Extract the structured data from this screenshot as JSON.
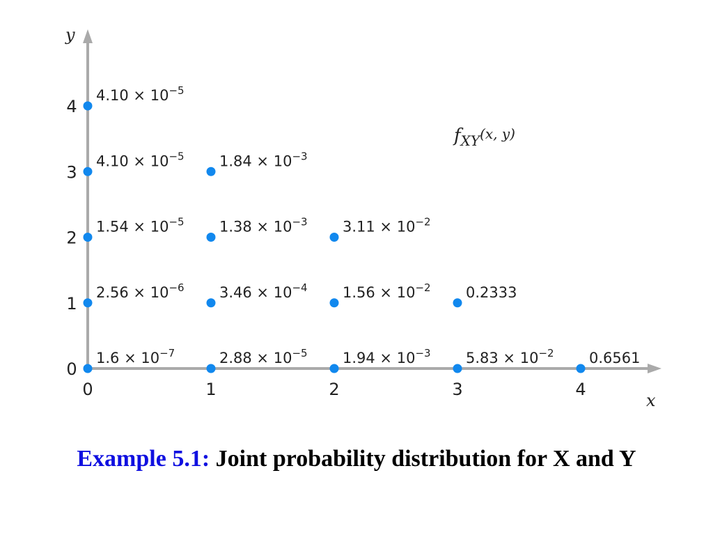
{
  "chart_data": {
    "type": "scatter",
    "function_label": {
      "f": "f",
      "sub": "XY",
      "args": "(x, y)"
    },
    "xlabel": "x",
    "ylabel": "y",
    "x_ticks": [
      "0",
      "1",
      "2",
      "3",
      "4"
    ],
    "y_ticks": [
      "0",
      "1",
      "2",
      "3",
      "4"
    ],
    "xlim": [
      0,
      4.6
    ],
    "ylim": [
      0,
      4.6
    ],
    "grid": false,
    "points": [
      {
        "x": 0,
        "y": 0,
        "value": 1.6e-07,
        "label": {
          "mant": "1.6 × 10",
          "exp": "−7"
        }
      },
      {
        "x": 1,
        "y": 0,
        "value": 2.88e-05,
        "label": {
          "mant": "2.88 × 10",
          "exp": "−5"
        }
      },
      {
        "x": 2,
        "y": 0,
        "value": 0.00194,
        "label": {
          "mant": "1.94 × 10",
          "exp": "−3"
        }
      },
      {
        "x": 3,
        "y": 0,
        "value": 0.0583,
        "label": {
          "mant": "5.83 × 10",
          "exp": "−2"
        }
      },
      {
        "x": 4,
        "y": 0,
        "value": 0.6561,
        "label": {
          "mant": "0.6561",
          "exp": ""
        }
      },
      {
        "x": 0,
        "y": 1,
        "value": 2.56e-06,
        "label": {
          "mant": "2.56 × 10",
          "exp": "−6"
        }
      },
      {
        "x": 1,
        "y": 1,
        "value": 0.000346,
        "label": {
          "mant": "3.46 × 10",
          "exp": "−4"
        }
      },
      {
        "x": 2,
        "y": 1,
        "value": 0.0156,
        "label": {
          "mant": "1.56 × 10",
          "exp": "−2"
        }
      },
      {
        "x": 3,
        "y": 1,
        "value": 0.2333,
        "label": {
          "mant": "0.2333",
          "exp": ""
        }
      },
      {
        "x": 0,
        "y": 2,
        "value": 1.54e-05,
        "label": {
          "mant": "1.54 × 10",
          "exp": "−5"
        }
      },
      {
        "x": 1,
        "y": 2,
        "value": 0.00138,
        "label": {
          "mant": "1.38 × 10",
          "exp": "−3"
        }
      },
      {
        "x": 2,
        "y": 2,
        "value": 0.0311,
        "label": {
          "mant": "3.11 × 10",
          "exp": "−2"
        }
      },
      {
        "x": 0,
        "y": 3,
        "value": 4.1e-05,
        "label": {
          "mant": "4.10 × 10",
          "exp": "−5"
        }
      },
      {
        "x": 1,
        "y": 3,
        "value": 0.00184,
        "label": {
          "mant": "1.84 × 10",
          "exp": "−3"
        }
      },
      {
        "x": 0,
        "y": 4,
        "value": 4.1e-05,
        "label": {
          "mant": "4.10 × 10",
          "exp": "−5"
        }
      }
    ]
  },
  "colors": {
    "point": "#1188ee",
    "axis": "#aaaaaa",
    "caption_prefix": "#1010e0",
    "caption_text": "#000000"
  },
  "caption": {
    "prefix": "Example 5.1:",
    "text": "Joint probability distribution for X and Y"
  }
}
